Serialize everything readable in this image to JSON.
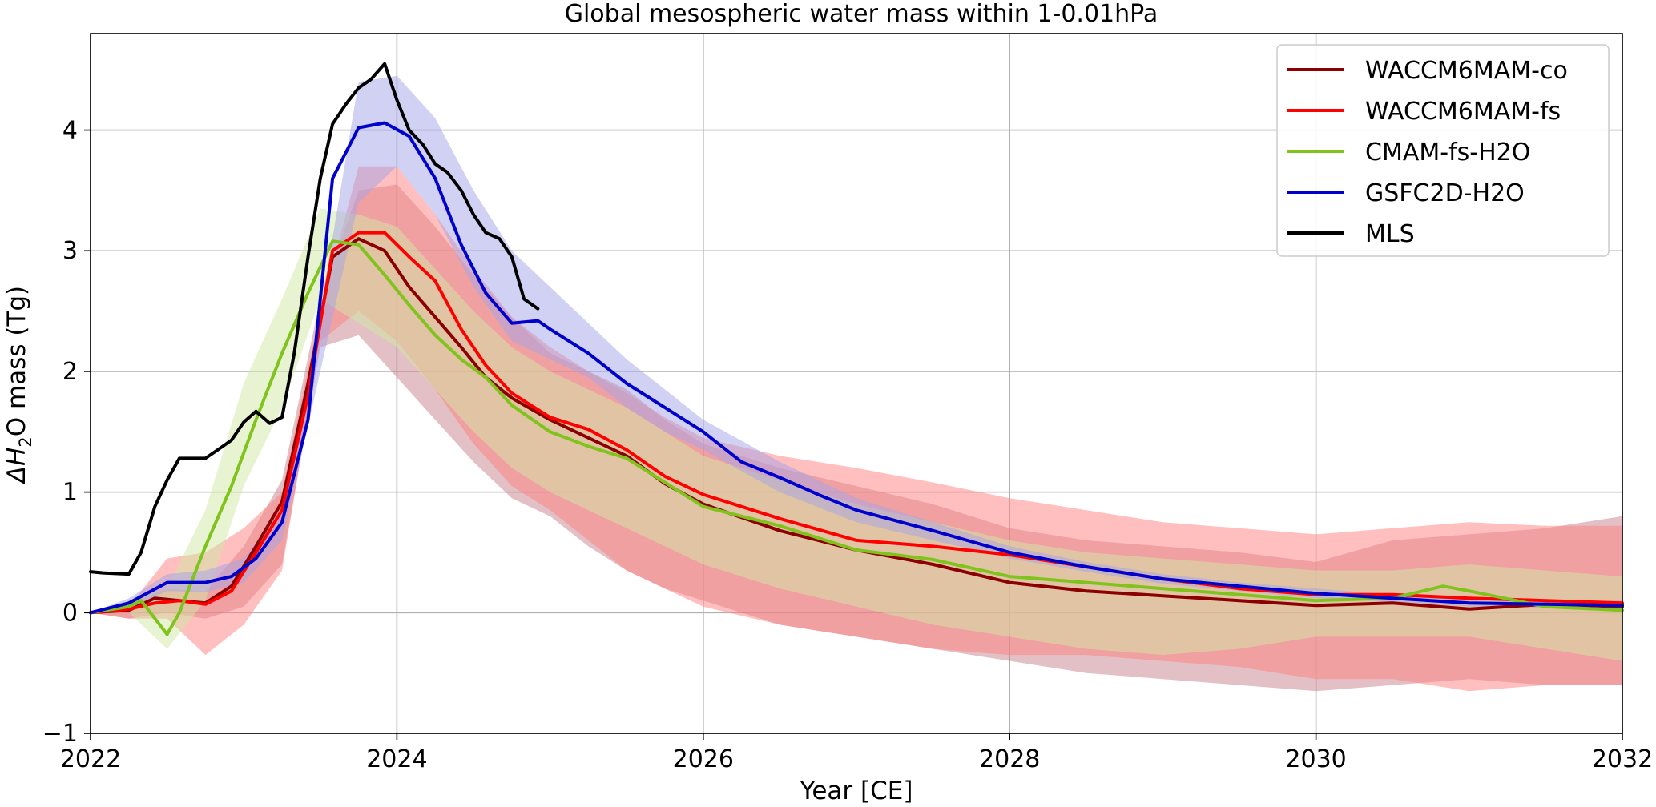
{
  "chart_data": {
    "type": "line",
    "title": "Global mesospheric water mass within 1-0.01hPa",
    "xlabel": "Year [CE]",
    "ylabel_prefix": "ΔH",
    "ylabel_sub": "2",
    "ylabel_suffix": "O mass (Tg)",
    "xlim": [
      2022,
      2032
    ],
    "ylim": [
      -1,
      4.8
    ],
    "xticks": [
      2022,
      2024,
      2026,
      2028,
      2030,
      2032
    ],
    "yticks": [
      -1,
      0,
      1,
      2,
      3,
      4
    ],
    "ytick_labels": [
      "−1",
      "0",
      "1",
      "2",
      "3",
      "4"
    ],
    "grid": true,
    "legend_position": "upper right",
    "series": [
      {
        "name": "WACCM6MAM-co",
        "color": "#8b0000",
        "x": [
          2022.0,
          2022.25,
          2022.42,
          2022.58,
          2022.75,
          2022.92,
          2023.08,
          2023.25,
          2023.42,
          2023.58,
          2023.75,
          2023.92,
          2024.08,
          2024.25,
          2024.42,
          2024.58,
          2024.75,
          2025.0,
          2025.25,
          2025.5,
          2025.75,
          2026.0,
          2026.5,
          2027.0,
          2027.5,
          2028.0,
          2028.5,
          2029.0,
          2029.5,
          2030.0,
          2030.5,
          2031.0,
          2031.5,
          2032.0
        ],
        "y": [
          0.0,
          0.02,
          0.12,
          0.1,
          0.08,
          0.22,
          0.55,
          0.92,
          1.9,
          2.95,
          3.1,
          3.0,
          2.7,
          2.45,
          2.2,
          1.95,
          1.78,
          1.6,
          1.45,
          1.3,
          1.07,
          0.9,
          0.68,
          0.52,
          0.4,
          0.25,
          0.18,
          0.14,
          0.1,
          0.06,
          0.08,
          0.03,
          0.07,
          0.05
        ]
      },
      {
        "name": "WACCM6MAM-fs",
        "color": "#ff0000",
        "x": [
          2022.0,
          2022.25,
          2022.42,
          2022.58,
          2022.75,
          2022.92,
          2023.08,
          2023.25,
          2023.42,
          2023.58,
          2023.75,
          2023.92,
          2024.08,
          2024.25,
          2024.42,
          2024.58,
          2024.75,
          2025.0,
          2025.25,
          2025.5,
          2025.75,
          2026.0,
          2026.5,
          2027.0,
          2027.5,
          2028.0,
          2028.5,
          2029.0,
          2029.5,
          2030.0,
          2030.5,
          2031.0,
          2031.5,
          2032.0
        ],
        "y": [
          0.0,
          0.03,
          0.08,
          0.1,
          0.07,
          0.18,
          0.5,
          0.85,
          1.8,
          3.0,
          3.15,
          3.15,
          2.95,
          2.75,
          2.35,
          2.05,
          1.82,
          1.62,
          1.52,
          1.35,
          1.13,
          0.98,
          0.78,
          0.6,
          0.55,
          0.48,
          0.38,
          0.28,
          0.2,
          0.15,
          0.15,
          0.12,
          0.1,
          0.08
        ]
      },
      {
        "name": "CMAM-fs-H2O",
        "color": "#7fc31c",
        "x": [
          2022.0,
          2022.25,
          2022.33,
          2022.5,
          2022.58,
          2022.75,
          2022.92,
          2023.08,
          2023.25,
          2023.42,
          2023.58,
          2023.75,
          2023.92,
          2024.08,
          2024.25,
          2024.42,
          2024.58,
          2024.75,
          2025.0,
          2025.25,
          2025.5,
          2025.75,
          2026.0,
          2026.5,
          2027.0,
          2027.5,
          2028.0,
          2028.5,
          2029.0,
          2029.5,
          2030.0,
          2030.5,
          2030.83,
          2031.0,
          2031.5,
          2032.0
        ],
        "y": [
          0.0,
          0.05,
          0.1,
          -0.18,
          0.0,
          0.55,
          1.05,
          1.6,
          2.15,
          2.65,
          3.08,
          3.05,
          2.8,
          2.55,
          2.3,
          2.1,
          1.95,
          1.72,
          1.5,
          1.38,
          1.28,
          1.08,
          0.88,
          0.72,
          0.52,
          0.44,
          0.3,
          0.25,
          0.2,
          0.15,
          0.1,
          0.12,
          0.22,
          0.18,
          0.05,
          0.02
        ]
      },
      {
        "name": "GSFC2D-H2O",
        "color": "#0000cd",
        "x": [
          2022.0,
          2022.25,
          2022.5,
          2022.75,
          2022.92,
          2023.08,
          2023.25,
          2023.42,
          2023.58,
          2023.75,
          2023.92,
          2024.08,
          2024.25,
          2024.42,
          2024.58,
          2024.75,
          2024.92,
          2025.0,
          2025.25,
          2025.5,
          2025.75,
          2026.0,
          2026.25,
          2026.5,
          2026.75,
          2027.0,
          2027.5,
          2028.0,
          2028.5,
          2029.0,
          2029.5,
          2030.0,
          2030.5,
          2031.0,
          2031.5,
          2032.0
        ],
        "y": [
          0.0,
          0.08,
          0.25,
          0.25,
          0.3,
          0.45,
          0.75,
          1.6,
          3.6,
          4.02,
          4.06,
          3.95,
          3.6,
          3.05,
          2.65,
          2.4,
          2.42,
          2.35,
          2.15,
          1.9,
          1.7,
          1.5,
          1.25,
          1.12,
          0.98,
          0.85,
          0.68,
          0.5,
          0.38,
          0.28,
          0.22,
          0.16,
          0.12,
          0.08,
          0.07,
          0.06
        ]
      },
      {
        "name": "MLS",
        "color": "#000000",
        "x": [
          2022.0,
          2022.08,
          2022.25,
          2022.33,
          2022.42,
          2022.5,
          2022.58,
          2022.67,
          2022.75,
          2022.83,
          2022.92,
          2023.0,
          2023.08,
          2023.17,
          2023.25,
          2023.33,
          2023.42,
          2023.5,
          2023.58,
          2023.67,
          2023.75,
          2023.83,
          2023.92,
          2024.0,
          2024.08,
          2024.17,
          2024.25,
          2024.33,
          2024.42,
          2024.5,
          2024.58,
          2024.67,
          2024.75,
          2024.83,
          2024.92
        ],
        "y": [
          0.34,
          0.33,
          0.32,
          0.5,
          0.88,
          1.1,
          1.28,
          1.28,
          1.28,
          1.35,
          1.43,
          1.58,
          1.67,
          1.57,
          1.62,
          2.15,
          2.95,
          3.6,
          4.05,
          4.22,
          4.35,
          4.42,
          4.55,
          4.25,
          4.0,
          3.88,
          3.72,
          3.65,
          3.5,
          3.3,
          3.15,
          3.1,
          2.95,
          2.6,
          2.52
        ]
      }
    ],
    "bands": [
      {
        "series": "WACCM6MAM-co",
        "color": "#c8818c",
        "x": [
          2022.0,
          2022.25,
          2022.5,
          2022.75,
          2023.0,
          2023.25,
          2023.5,
          2023.75,
          2024.0,
          2024.25,
          2024.5,
          2024.75,
          2025.0,
          2025.25,
          2025.5,
          2025.75,
          2026.0,
          2026.5,
          2027.0,
          2027.5,
          2028.0,
          2028.5,
          2029.0,
          2029.5,
          2030.0,
          2030.5,
          2031.0,
          2031.5,
          2032.0
        ],
        "upper": [
          0.0,
          0.08,
          0.2,
          0.18,
          0.55,
          1.1,
          2.6,
          3.5,
          3.55,
          3.2,
          2.8,
          2.45,
          2.15,
          2.0,
          1.85,
          1.6,
          1.4,
          1.2,
          1.05,
          0.9,
          0.7,
          0.6,
          0.55,
          0.5,
          0.42,
          0.6,
          0.65,
          0.7,
          0.8
        ],
        "lower": [
          0.0,
          -0.05,
          0.0,
          -0.05,
          0.05,
          0.4,
          2.2,
          2.3,
          1.95,
          1.6,
          1.25,
          0.95,
          0.8,
          0.55,
          0.35,
          0.2,
          0.1,
          -0.1,
          -0.2,
          -0.3,
          -0.4,
          -0.5,
          -0.55,
          -0.6,
          -0.65,
          -0.6,
          -0.55,
          -0.6,
          -0.6
        ]
      },
      {
        "series": "WACCM6MAM-fs",
        "color": "#ff8080",
        "x": [
          2022.0,
          2022.25,
          2022.5,
          2022.75,
          2023.0,
          2023.25,
          2023.5,
          2023.75,
          2024.0,
          2024.25,
          2024.5,
          2024.75,
          2025.0,
          2025.25,
          2025.5,
          2025.75,
          2026.0,
          2026.5,
          2027.0,
          2027.5,
          2028.0,
          2028.5,
          2029.0,
          2029.5,
          2030.0,
          2030.5,
          2031.0,
          2031.5,
          2032.0
        ],
        "upper": [
          0.0,
          0.05,
          0.45,
          0.5,
          0.7,
          1.0,
          2.5,
          3.7,
          3.7,
          3.3,
          2.85,
          2.45,
          2.2,
          2.0,
          1.82,
          1.62,
          1.45,
          1.3,
          1.2,
          1.08,
          0.95,
          0.85,
          0.75,
          0.7,
          0.65,
          0.7,
          0.75,
          0.72,
          0.72
        ],
        "lower": [
          0.0,
          -0.05,
          -0.05,
          -0.35,
          -0.1,
          0.35,
          2.25,
          2.5,
          2.25,
          1.85,
          1.4,
          1.05,
          0.85,
          0.6,
          0.35,
          0.2,
          0.05,
          -0.1,
          -0.2,
          -0.3,
          -0.35,
          -0.35,
          -0.4,
          -0.45,
          -0.55,
          -0.55,
          -0.65,
          -0.6,
          -0.6
        ]
      },
      {
        "series": "CMAM-fs-H2O",
        "color": "#cfe8a3",
        "x": [
          2022.0,
          2022.25,
          2022.5,
          2022.75,
          2023.0,
          2023.25,
          2023.5,
          2023.75,
          2024.0,
          2024.25,
          2024.5,
          2024.75,
          2025.0,
          2025.25,
          2025.5,
          2025.75,
          2026.0,
          2026.5,
          2027.0,
          2027.5,
          2028.0,
          2028.5,
          2029.0,
          2029.5,
          2030.0,
          2030.5,
          2031.0,
          2031.5,
          2032.0
        ],
        "upper": [
          0.0,
          0.1,
          0.2,
          0.85,
          1.9,
          2.6,
          3.35,
          3.3,
          3.2,
          2.85,
          2.5,
          2.2,
          2.0,
          1.85,
          1.7,
          1.5,
          1.3,
          1.1,
          0.9,
          0.75,
          0.6,
          0.5,
          0.45,
          0.4,
          0.35,
          0.35,
          0.4,
          0.35,
          0.3
        ],
        "lower": [
          0.0,
          0.0,
          -0.3,
          0.1,
          1.05,
          1.7,
          2.6,
          2.4,
          2.2,
          1.85,
          1.5,
          1.2,
          1.0,
          0.85,
          0.7,
          0.55,
          0.4,
          0.2,
          0.05,
          -0.1,
          -0.2,
          -0.3,
          -0.35,
          -0.3,
          -0.2,
          -0.2,
          -0.2,
          -0.3,
          -0.4
        ]
      },
      {
        "series": "GSFC2D-H2O",
        "color": "#a3a3e8",
        "x": [
          2022.0,
          2022.25,
          2022.5,
          2022.75,
          2023.0,
          2023.25,
          2023.5,
          2023.75,
          2024.0,
          2024.25,
          2024.5,
          2024.75,
          2025.0,
          2025.25,
          2025.5,
          2025.75,
          2026.0,
          2026.5,
          2027.0,
          2027.5,
          2028.0,
          2028.5,
          2029.0,
          2029.5,
          2030.0,
          2030.5,
          2031.0,
          2031.5,
          2032.0
        ],
        "upper": [
          0.0,
          0.12,
          0.32,
          0.35,
          0.45,
          0.85,
          2.5,
          4.4,
          4.45,
          4.1,
          3.5,
          3.0,
          2.7,
          2.4,
          2.1,
          1.85,
          1.6,
          1.25,
          0.95,
          0.75,
          0.55,
          0.42,
          0.32,
          0.25,
          0.2,
          0.15,
          0.12,
          0.1,
          0.1
        ],
        "lower": [
          0.0,
          0.04,
          0.18,
          0.17,
          0.25,
          0.6,
          2.0,
          3.4,
          3.7,
          3.3,
          2.7,
          2.25,
          2.1,
          1.95,
          1.7,
          1.5,
          1.35,
          1.0,
          0.75,
          0.6,
          0.45,
          0.34,
          0.24,
          0.18,
          0.12,
          0.09,
          0.05,
          0.04,
          0.03
        ]
      }
    ]
  }
}
